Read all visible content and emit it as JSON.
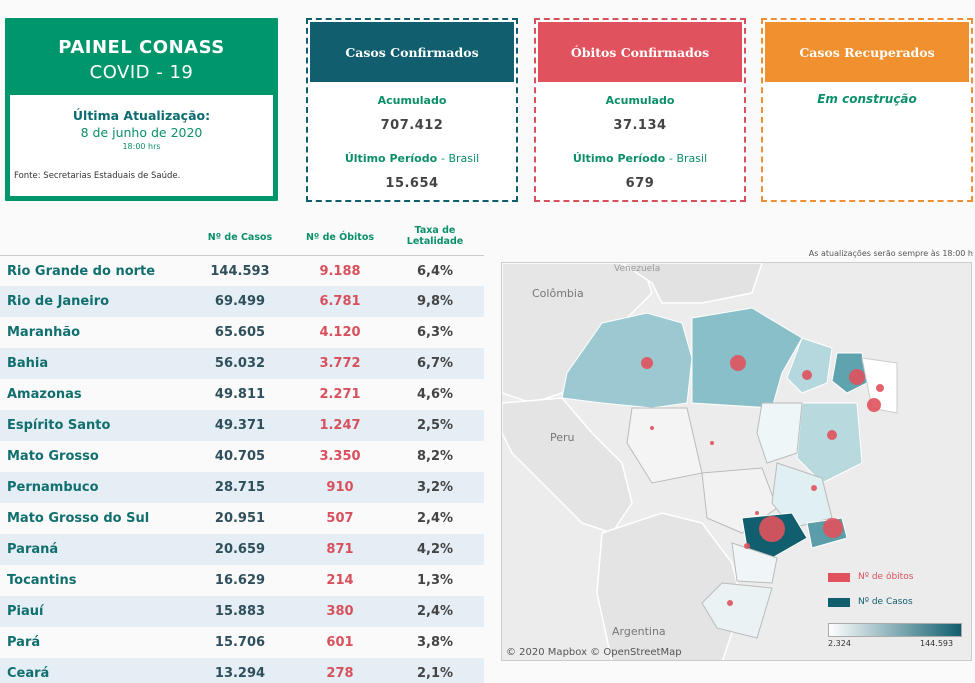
{
  "title": {
    "line1": "PAINEL CONASS",
    "line2": "COVID - 19",
    "updated_label": "Última Atualização:",
    "date": "8 de junho de 2020",
    "hour": "18:00 hrs",
    "source": "Fonte: Secretarias Estaduais de Saúde."
  },
  "cards": {
    "cases": {
      "header": "Casos Confirmados",
      "acc_label": "Acumulado",
      "acc_value": "707.412",
      "period_label": "Último Período",
      "period_suffix": "- Brasil",
      "period_value": "15.654"
    },
    "deaths": {
      "header": "Óbitos Confirmados",
      "acc_label": "Acumulado",
      "acc_value": "37.134",
      "period_label": "Último Período",
      "period_suffix": "- Brasil",
      "period_value": "679"
    },
    "recovered": {
      "header": "Casos Recuperados",
      "note": "Em construção"
    }
  },
  "table": {
    "headers": {
      "cases": "Nº de Casos",
      "deaths": "Nº de Óbitos",
      "rate1": "Taxa de",
      "rate2": "Letalidade"
    },
    "rows": [
      {
        "state": "Rio Grande do norte",
        "cases": "144.593",
        "deaths": "9.188",
        "rate": "6,4%"
      },
      {
        "state": "Rio de Janeiro",
        "cases": "69.499",
        "deaths": "6.781",
        "rate": "9,8%"
      },
      {
        "state": "Maranhão",
        "cases": "65.605",
        "deaths": "4.120",
        "rate": "6,3%"
      },
      {
        "state": "Bahia",
        "cases": "56.032",
        "deaths": "3.772",
        "rate": "6,7%"
      },
      {
        "state": "Amazonas",
        "cases": "49.811",
        "deaths": "2.271",
        "rate": "4,6%"
      },
      {
        "state": "Espírito Santo",
        "cases": "49.371",
        "deaths": "1.247",
        "rate": "2,5%"
      },
      {
        "state": "Mato Grosso",
        "cases": "40.705",
        "deaths": "3.350",
        "rate": "8,2%"
      },
      {
        "state": "Pernambuco",
        "cases": "28.715",
        "deaths": "910",
        "rate": "3,2%"
      },
      {
        "state": "Mato Grosso do Sul",
        "cases": "20.951",
        "deaths": "507",
        "rate": "2,4%"
      },
      {
        "state": "Paraná",
        "cases": "20.659",
        "deaths": "871",
        "rate": "4,2%"
      },
      {
        "state": "Tocantins",
        "cases": "16.629",
        "deaths": "214",
        "rate": "1,3%"
      },
      {
        "state": "Piauí",
        "cases": "15.883",
        "deaths": "380",
        "rate": "2,4%"
      },
      {
        "state": "Pará",
        "cases": "15.706",
        "deaths": "601",
        "rate": "3,8%"
      },
      {
        "state": "Ceará",
        "cases": "13.294",
        "deaths": "278",
        "rate": "2,1%"
      }
    ]
  },
  "map": {
    "update_note": "As atualizações serão sempre às 18:00 h",
    "labels": {
      "colombia": "Colômbia",
      "venezuela": "Venezuela",
      "peru": "Peru",
      "argentina": "Argentina"
    },
    "legend": {
      "deaths": "Nº de óbitos",
      "cases": "Nº de Casos",
      "min": "2.324",
      "max": "144.593"
    },
    "copyright": "© 2020 Mapbox © OpenStreetMap",
    "colors": {
      "deaths": "#e0535e",
      "cases": "#105e6e"
    }
  }
}
